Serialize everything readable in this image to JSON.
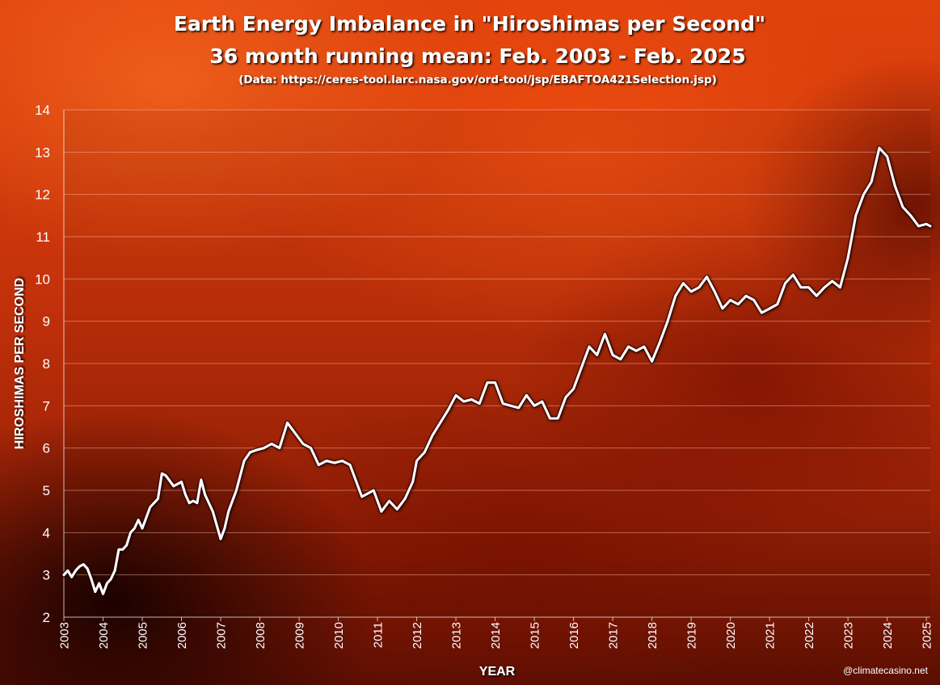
{
  "chart_data": {
    "type": "line",
    "title": "Earth Energy Imbalance in \"Hiroshimas per Second\"",
    "subtitle": "36 month running mean: Feb. 2003 - Feb. 2025",
    "source": "(Data: https://ceres-tool.larc.nasa.gov/ord-tool/jsp/EBAFTOA421Selection.jsp)",
    "xlabel": "YEAR",
    "ylabel": "HIROSHIMAS PER SECOND",
    "credit": "@climatecasino.net",
    "xlim": [
      2003,
      2025.1
    ],
    "ylim": [
      2,
      14
    ],
    "x_ticks": [
      "2003",
      "2004",
      "2005",
      "2006",
      "2007",
      "2008",
      "2009",
      "2010",
      "2011",
      "2012",
      "2013",
      "2014",
      "2015",
      "2016",
      "2017",
      "2018",
      "2019",
      "2020",
      "2021",
      "2022",
      "2023",
      "2024",
      "2025"
    ],
    "y_ticks": [
      "2",
      "3",
      "4",
      "5",
      "6",
      "7",
      "8",
      "9",
      "10",
      "11",
      "12",
      "13",
      "14"
    ],
    "grid": "horizontal",
    "line_color": "#ffffff",
    "series": [
      {
        "x": [
          2003.0,
          2003.1,
          2003.2,
          2003.3,
          2003.4,
          2003.5,
          2003.6,
          2003.7,
          2003.8,
          2003.9,
          2004.0,
          2004.1,
          2004.2,
          2004.3,
          2004.4,
          2004.5,
          2004.6,
          2004.7,
          2004.8,
          2004.9,
          2005.0,
          2005.2,
          2005.4,
          2005.5,
          2005.6,
          2005.8,
          2006.0,
          2006.1,
          2006.2,
          2006.3,
          2006.4,
          2006.5,
          2006.6,
          2006.8,
          2007.0,
          2007.1,
          2007.2,
          2007.4,
          2007.6,
          2007.75,
          2007.9,
          2008.1,
          2008.3,
          2008.5,
          2008.7,
          2008.9,
          2009.1,
          2009.3,
          2009.5,
          2009.7,
          2009.9,
          2010.1,
          2010.3,
          2010.6,
          2010.9,
          2011.1,
          2011.3,
          2011.5,
          2011.7,
          2011.9,
          2012.0,
          2012.2,
          2012.4,
          2012.6,
          2012.8,
          2013.0,
          2013.2,
          2013.4,
          2013.6,
          2013.8,
          2014.0,
          2014.2,
          2014.4,
          2014.6,
          2014.8,
          2015.0,
          2015.2,
          2015.4,
          2015.6,
          2015.8,
          2016.0,
          2016.2,
          2016.4,
          2016.6,
          2016.8,
          2017.0,
          2017.2,
          2017.4,
          2017.6,
          2017.8,
          2018.0,
          2018.2,
          2018.4,
          2018.6,
          2018.8,
          2019.0,
          2019.2,
          2019.4,
          2019.6,
          2019.8,
          2020.0,
          2020.2,
          2020.4,
          2020.6,
          2020.8,
          2021.0,
          2021.2,
          2021.4,
          2021.6,
          2021.8,
          2022.0,
          2022.2,
          2022.4,
          2022.6,
          2022.8,
          2023.0,
          2023.2,
          2023.4,
          2023.6,
          2023.8,
          2024.0,
          2024.2,
          2024.4,
          2024.6,
          2024.8,
          2025.0,
          2025.1
        ],
        "y": [
          3.0,
          3.1,
          2.95,
          3.1,
          3.2,
          3.25,
          3.15,
          2.9,
          2.6,
          2.8,
          2.55,
          2.8,
          2.9,
          3.1,
          3.6,
          3.6,
          3.7,
          4.0,
          4.1,
          4.3,
          4.1,
          4.6,
          4.8,
          5.4,
          5.35,
          5.1,
          5.2,
          4.9,
          4.7,
          4.75,
          4.7,
          5.25,
          4.9,
          4.5,
          3.85,
          4.1,
          4.5,
          5.0,
          5.7,
          5.9,
          5.95,
          6.0,
          6.1,
          6.0,
          6.6,
          6.35,
          6.1,
          6.0,
          5.6,
          5.7,
          5.65,
          5.7,
          5.6,
          4.85,
          5.0,
          4.5,
          4.75,
          4.55,
          4.8,
          5.2,
          5.7,
          5.9,
          6.3,
          6.6,
          6.9,
          7.25,
          7.1,
          7.15,
          7.05,
          7.55,
          7.55,
          7.05,
          7.0,
          6.95,
          7.25,
          7.0,
          7.1,
          6.7,
          6.7,
          7.2,
          7.4,
          7.9,
          8.4,
          8.2,
          8.7,
          8.2,
          8.1,
          8.4,
          8.3,
          8.4,
          8.05,
          8.5,
          9.0,
          9.6,
          9.9,
          9.7,
          9.8,
          10.05,
          9.7,
          9.3,
          9.5,
          9.4,
          9.6,
          9.5,
          9.2,
          9.3,
          9.4,
          9.9,
          10.1,
          9.8,
          9.8,
          9.6,
          9.8,
          9.95,
          9.8,
          10.5,
          11.5,
          12.0,
          12.3,
          13.1,
          12.9,
          12.2,
          11.7,
          11.5,
          11.25,
          11.3,
          11.25
        ]
      }
    ]
  }
}
